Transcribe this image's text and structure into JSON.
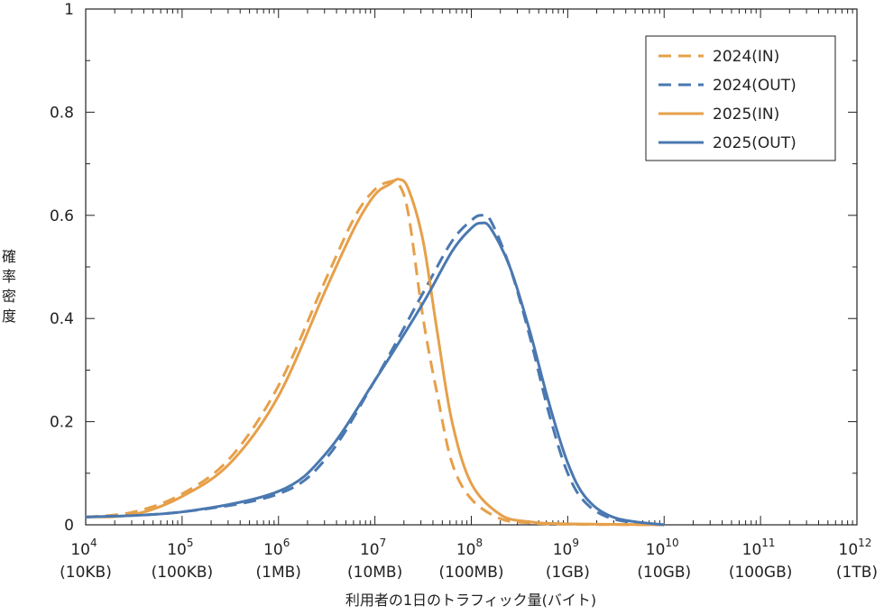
{
  "chart_data": {
    "type": "line",
    "xlabel": "利用者の1日のトラフィック量(バイト)",
    "ylabel": "確率密度",
    "x_scale": "log",
    "xlim": [
      10000,
      1000000000000
    ],
    "ylim": [
      0,
      1
    ],
    "grid": false,
    "legend_position": "top-right",
    "x_ticks": [
      {
        "value": 10000,
        "base": "10",
        "exp": "4",
        "label": "(10KB)"
      },
      {
        "value": 100000,
        "base": "10",
        "exp": "5",
        "label": "(100KB)"
      },
      {
        "value": 1000000,
        "base": "10",
        "exp": "6",
        "label": "(1MB)"
      },
      {
        "value": 10000000,
        "base": "10",
        "exp": "7",
        "label": "(10MB)"
      },
      {
        "value": 100000000,
        "base": "10",
        "exp": "8",
        "label": "(100MB)"
      },
      {
        "value": 1000000000,
        "base": "10",
        "exp": "9",
        "label": "(1GB)"
      },
      {
        "value": 10000000000,
        "base": "10",
        "exp": "10",
        "label": "(10GB)"
      },
      {
        "value": 100000000000,
        "base": "10",
        "exp": "11",
        "label": "(100GB)"
      },
      {
        "value": 1000000000000,
        "base": "10",
        "exp": "12",
        "label": "(1TB)"
      }
    ],
    "y_ticks": [
      {
        "value": 0,
        "label": "0"
      },
      {
        "value": 0.2,
        "label": "0.2"
      },
      {
        "value": 0.4,
        "label": "0.4"
      },
      {
        "value": 0.6,
        "label": "0.6"
      },
      {
        "value": 0.8,
        "label": "0.8"
      },
      {
        "value": 1,
        "label": "1"
      }
    ],
    "series": [
      {
        "name": "2024(IN)",
        "color": "#e6a04a",
        "dash": true,
        "x": [
          10000,
          31623,
          100000,
          316228,
          1000000,
          3162278,
          6309573,
          10000000,
          14125375,
          17782794,
          22387211,
          31622777,
          44668359,
          63095734,
          100000000,
          199526231,
          398107171,
          1000000000,
          10000000000
        ],
        "y": [
          0.015,
          0.025,
          0.06,
          0.13,
          0.27,
          0.48,
          0.6,
          0.65,
          0.665,
          0.66,
          0.6,
          0.4,
          0.25,
          0.12,
          0.05,
          0.012,
          0.004,
          0.001,
          0.0
        ]
      },
      {
        "name": "2024(OUT)",
        "color": "#4a78b0",
        "dash": true,
        "x": [
          10000,
          100000,
          1000000,
          3162278,
          10000000,
          31622777,
          63095734,
          100000000,
          125892541,
          158489319,
          251188643,
          398107171,
          630957344,
          1000000000,
          1584893192,
          3162277660,
          10000000000
        ],
        "y": [
          0.015,
          0.025,
          0.06,
          0.13,
          0.28,
          0.45,
          0.55,
          0.59,
          0.6,
          0.59,
          0.5,
          0.37,
          0.22,
          0.1,
          0.04,
          0.01,
          0.0
        ]
      },
      {
        "name": "2025(IN)",
        "color": "#e6a04a",
        "dash": false,
        "x": [
          10000,
          31623,
          100000,
          316228,
          1000000,
          3162278,
          6309573,
          10000000,
          14125375,
          17782794,
          22387211,
          31622777,
          44668359,
          63095734,
          100000000,
          199526231,
          398107171,
          1000000000,
          10000000000
        ],
        "y": [
          0.015,
          0.02,
          0.055,
          0.12,
          0.25,
          0.46,
          0.58,
          0.64,
          0.66,
          0.67,
          0.65,
          0.55,
          0.37,
          0.2,
          0.08,
          0.02,
          0.006,
          0.002,
          0.0
        ]
      },
      {
        "name": "2025(OUT)",
        "color": "#4a78b0",
        "dash": false,
        "x": [
          10000,
          100000,
          1000000,
          3162278,
          10000000,
          31622777,
          63095734,
          100000000,
          125892541,
          158489319,
          251188643,
          398107171,
          630957344,
          1000000000,
          1584893192,
          3162277660,
          10000000000
        ],
        "y": [
          0.015,
          0.025,
          0.065,
          0.14,
          0.28,
          0.43,
          0.53,
          0.575,
          0.585,
          0.575,
          0.5,
          0.38,
          0.24,
          0.12,
          0.05,
          0.013,
          0.0
        ]
      }
    ]
  }
}
